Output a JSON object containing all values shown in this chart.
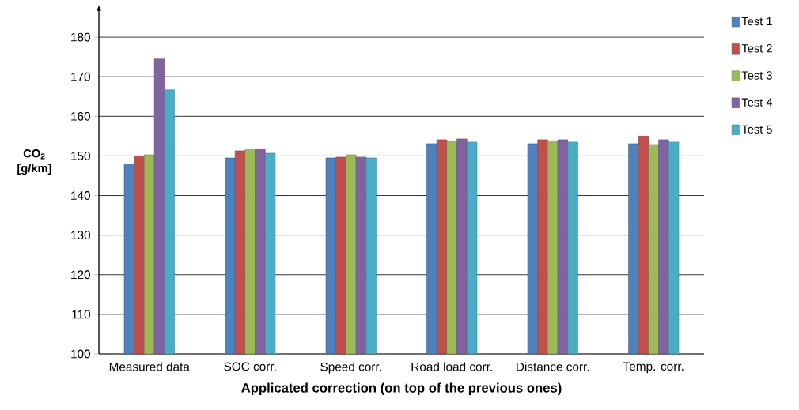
{
  "chart_data": {
    "type": "bar",
    "xlabel": "**Applicated correction (on top of the previous ones)**",
    "ylabel": "**CO$_{2}$ [g/km]**",
    "categories": [
      "Measured data",
      "SOC corr.",
      "Speed corr.",
      "Road load corr.",
      "Distance corr.",
      "Temp. corr."
    ],
    "series": [
      {
        "name": "Test 1",
        "color": "#4f81bd",
        "values": [
          148.0,
          149.5,
          149.5,
          153.1,
          153.1,
          153.1
        ]
      },
      {
        "name": "Test 2",
        "color": "#c0504d",
        "values": [
          150.0,
          151.3,
          149.7,
          154.1,
          154.1,
          155.0
        ]
      },
      {
        "name": "Test 3",
        "color": "#9bbb59",
        "values": [
          150.3,
          151.6,
          150.3,
          153.8,
          153.8,
          152.9
        ]
      },
      {
        "name": "Test 4",
        "color": "#8064a2",
        "values": [
          174.5,
          151.8,
          149.7,
          154.3,
          154.1,
          154.1
        ]
      },
      {
        "name": "Test 5",
        "color": "#4bacc6",
        "values": [
          166.7,
          150.7,
          149.5,
          153.5,
          153.5,
          153.5
        ]
      }
    ],
    "ylim": [
      100,
      187
    ],
    "yticks": [
      100,
      110,
      120,
      130,
      140,
      150,
      160,
      170,
      180
    ],
    "grid": "y",
    "legend": "right"
  }
}
